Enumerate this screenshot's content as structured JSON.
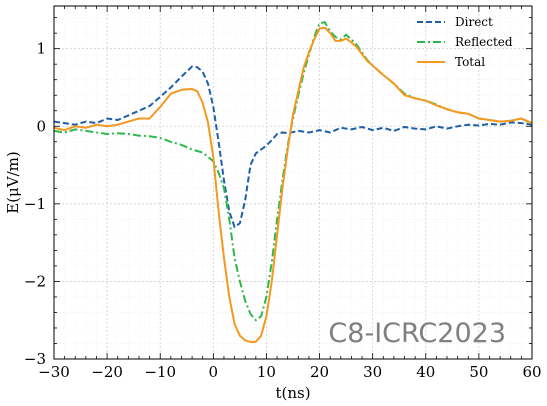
{
  "chart_data": {
    "type": "line",
    "xlabel": "t(ns)",
    "ylabel": "E(μV/m)",
    "xlim": [
      -30,
      60
    ],
    "ylim": [
      -3,
      1.55
    ],
    "xticks": [
      -30,
      -20,
      -10,
      0,
      10,
      20,
      30,
      40,
      50,
      60
    ],
    "xtick_labels": [
      "−30",
      "−20",
      "−10",
      "0",
      "10",
      "20",
      "30",
      "40",
      "50",
      "60"
    ],
    "yticks": [
      -3,
      -2,
      -1,
      0,
      1
    ],
    "ytick_labels": [
      "−3",
      "−2",
      "−1",
      "0",
      "1"
    ],
    "grid": true,
    "legend_position": "top-right",
    "watermark": "C8-ICRC2023",
    "series": [
      {
        "name": "Direct",
        "color": "#1f5fa8",
        "dash": "dashed",
        "x": [
          -30,
          -28,
          -26,
          -24,
          -22,
          -20,
          -18,
          -16,
          -14,
          -12,
          -10,
          -8,
          -6,
          -4,
          -3,
          -2,
          -1,
          0,
          1,
          2,
          3,
          4,
          5,
          6,
          7,
          8,
          9,
          10,
          11,
          12,
          13,
          14,
          16,
          18,
          20,
          22,
          24,
          26,
          28,
          30,
          32,
          34,
          36,
          38,
          40,
          42,
          44,
          46,
          48,
          50,
          52,
          54,
          56,
          58,
          60
        ],
        "y": [
          0.06,
          0.04,
          0.02,
          0.06,
          0.04,
          0.1,
          0.08,
          0.14,
          0.2,
          0.26,
          0.38,
          0.5,
          0.64,
          0.77,
          0.76,
          0.7,
          0.55,
          0.25,
          -0.2,
          -0.7,
          -1.1,
          -1.3,
          -1.25,
          -0.95,
          -0.5,
          -0.35,
          -0.3,
          -0.25,
          -0.18,
          -0.1,
          -0.08,
          -0.09,
          -0.06,
          -0.08,
          -0.05,
          -0.08,
          -0.02,
          -0.04,
          -0.01,
          -0.05,
          -0.02,
          -0.06,
          -0.01,
          -0.03,
          -0.04,
          0.0,
          -0.03,
          0.0,
          0.02,
          0.01,
          0.03,
          0.02,
          0.05,
          0.04,
          0.02
        ]
      },
      {
        "name": "Reflected",
        "color": "#2eb84c",
        "dash": "dashdot",
        "x": [
          -30,
          -28,
          -26,
          -24,
          -22,
          -20,
          -18,
          -16,
          -14,
          -12,
          -10,
          -8,
          -6,
          -4,
          -2,
          0,
          1,
          2,
          3,
          4,
          5,
          6,
          7,
          8,
          9,
          10,
          11,
          12,
          13,
          14,
          15,
          16,
          17,
          18,
          19,
          20,
          21,
          22,
          23,
          24,
          25,
          26,
          27,
          28,
          29,
          30,
          31,
          32,
          34,
          36,
          38,
          40,
          42,
          44,
          46,
          48,
          50,
          52,
          54,
          56,
          58,
          60
        ],
        "y": [
          -0.06,
          -0.08,
          -0.04,
          -0.06,
          -0.08,
          -0.1,
          -0.09,
          -0.1,
          -0.12,
          -0.13,
          -0.15,
          -0.2,
          -0.24,
          -0.3,
          -0.34,
          -0.45,
          -0.6,
          -0.8,
          -1.2,
          -1.7,
          -2.0,
          -2.25,
          -2.42,
          -2.5,
          -2.45,
          -2.2,
          -1.75,
          -1.2,
          -0.7,
          -0.25,
          0.1,
          0.4,
          0.68,
          0.92,
          1.15,
          1.33,
          1.34,
          1.22,
          1.15,
          1.12,
          1.18,
          1.12,
          1.05,
          0.95,
          0.85,
          0.78,
          0.72,
          0.66,
          0.55,
          0.42,
          0.36,
          0.33,
          0.28,
          0.22,
          0.18,
          0.16,
          0.1,
          0.08,
          0.06,
          0.07,
          0.1,
          0.03
        ]
      },
      {
        "name": "Total",
        "color": "#f5981f",
        "dash": "solid",
        "x": [
          -30,
          -28,
          -26,
          -24,
          -22,
          -20,
          -18,
          -16,
          -14,
          -12,
          -10,
          -8,
          -6,
          -4,
          -3,
          -2,
          -1,
          0,
          1,
          2,
          3,
          4,
          5,
          6,
          7,
          8,
          9,
          10,
          11,
          12,
          13,
          14,
          15,
          16,
          17,
          18,
          19,
          20,
          21,
          22,
          23,
          24,
          25,
          26,
          27,
          28,
          29,
          30,
          31,
          32,
          34,
          36,
          38,
          40,
          42,
          44,
          46,
          48,
          50,
          52,
          54,
          56,
          58,
          60
        ],
        "y": [
          -0.02,
          -0.05,
          0.0,
          -0.02,
          0.02,
          0.0,
          0.02,
          0.06,
          0.1,
          0.1,
          0.25,
          0.42,
          0.47,
          0.48,
          0.45,
          0.3,
          0.05,
          -0.4,
          -1.1,
          -1.7,
          -2.2,
          -2.55,
          -2.7,
          -2.76,
          -2.78,
          -2.78,
          -2.7,
          -2.45,
          -2.0,
          -1.4,
          -0.8,
          -0.3,
          0.15,
          0.45,
          0.75,
          0.95,
          1.12,
          1.26,
          1.27,
          1.2,
          1.1,
          1.1,
          1.13,
          1.08,
          1.02,
          0.93,
          0.84,
          0.78,
          0.72,
          0.66,
          0.55,
          0.4,
          0.36,
          0.33,
          0.27,
          0.22,
          0.18,
          0.16,
          0.1,
          0.08,
          0.06,
          0.07,
          0.1,
          0.04
        ]
      }
    ]
  }
}
